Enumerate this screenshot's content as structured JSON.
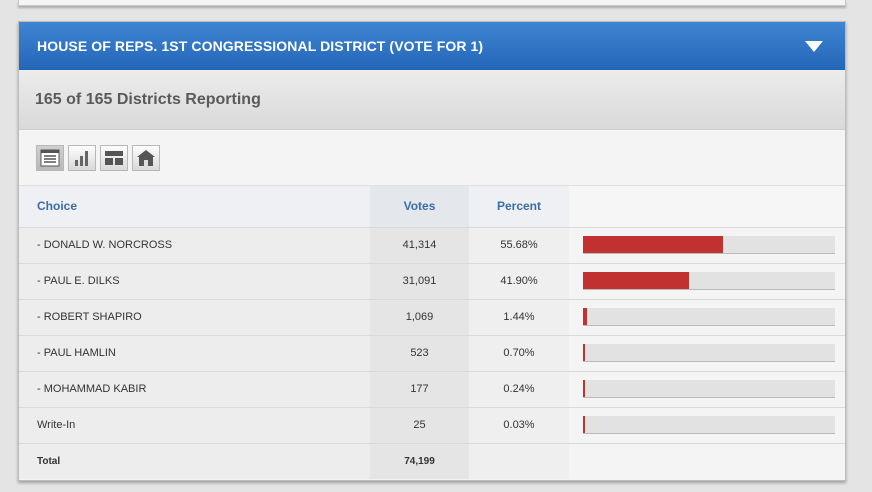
{
  "contest": {
    "title": "HOUSE OF REPS. 1ST CONGRESSIONAL DISTRICT (VOTE FOR 1)",
    "reporting": "165 of 165 Districts Reporting"
  },
  "view_buttons": [
    {
      "icon": "table-view-icon",
      "active": true
    },
    {
      "icon": "bar-chart-view-icon",
      "active": false
    },
    {
      "icon": "layout-view-icon",
      "active": false
    },
    {
      "icon": "home-icon",
      "active": false
    }
  ],
  "table": {
    "headers": {
      "choice": "Choice",
      "votes": "Votes",
      "percent": "Percent"
    },
    "rows": [
      {
        "name": "- DONALD W. NORCROSS",
        "votes": "41,314",
        "percent": "55.68%",
        "share": 0.5568
      },
      {
        "name": "- PAUL E. DILKS",
        "votes": "31,091",
        "percent": "41.90%",
        "share": 0.419
      },
      {
        "name": "- ROBERT SHAPIRO",
        "votes": "1,069",
        "percent": "1.44%",
        "share": 0.0144
      },
      {
        "name": "- PAUL HAMLIN",
        "votes": "523",
        "percent": "0.70%",
        "share": 0.007
      },
      {
        "name": "- MOHAMMAD KABIR",
        "votes": "177",
        "percent": "0.24%",
        "share": 0.0024
      },
      {
        "name": "Write-In",
        "votes": "25",
        "percent": "0.03%",
        "share": 0.0003
      }
    ],
    "total": {
      "label": "Total",
      "votes": "74,199"
    }
  },
  "colors": {
    "header": "#2f74c4",
    "bar_fill": "#c0312f",
    "header_text": "#3b6ea8"
  }
}
